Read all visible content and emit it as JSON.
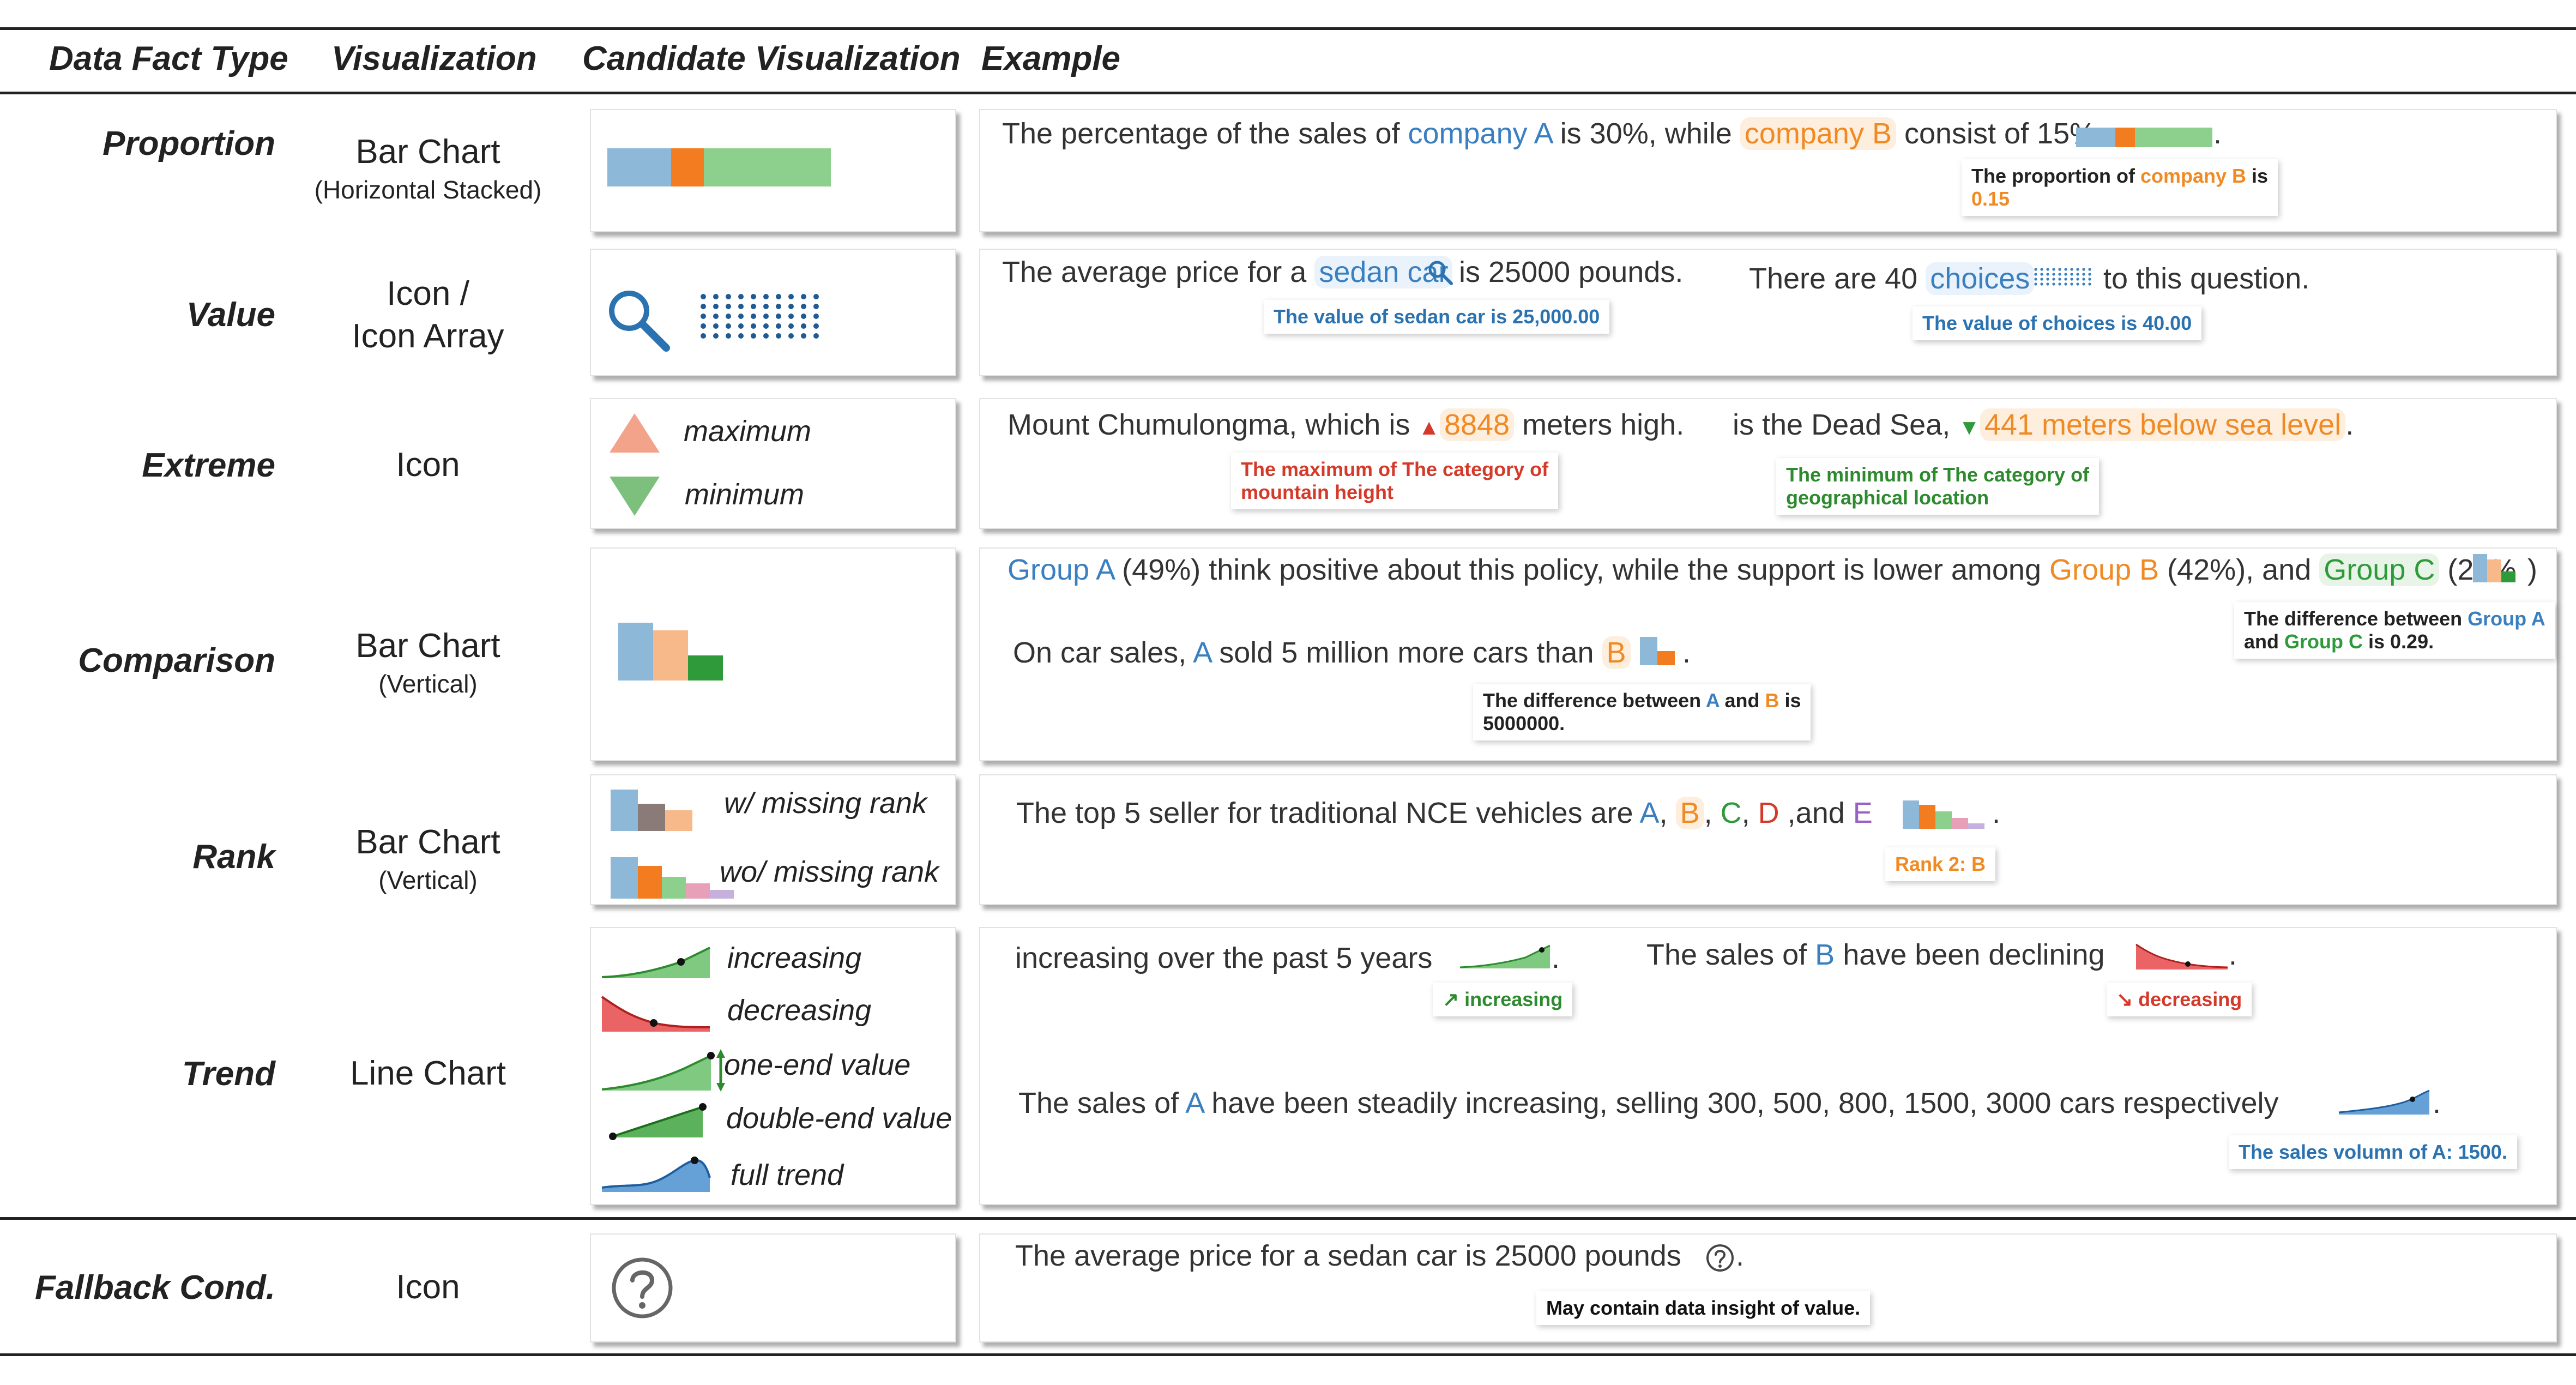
{
  "header": {
    "col_type": "Data Fact Type",
    "col_vis": "Visualization",
    "col_candidate": "Candidate Visualization",
    "col_example": "Example"
  },
  "rows": {
    "proportion": {
      "type": "Proportion",
      "vis": "Bar Chart",
      "vis_sub": "(Horizontal Stacked)",
      "ex": {
        "t1": "The percentage of the sales of ",
        "a": "company A",
        "t2": " is 30%, while ",
        "b": "company B",
        "t3": " consist of 15%",
        "t4": ".",
        "tip1": "The proportion of ",
        "tip_b": "company B",
        "tip2": " is",
        "tip3": "0.15"
      }
    },
    "value": {
      "type": "Value",
      "vis": "Icon /",
      "vis2": "Icon Array",
      "ex1": {
        "t1": "The average price for a ",
        "a": "sedan car",
        "t2": " is 25000 pounds.",
        "tip": "The value of sedan car is 25,000.00"
      },
      "ex2": {
        "t1": "There are 40 ",
        "a": "choices",
        "t2": " to this question.",
        "tip": "The value of choices is 40.00"
      }
    },
    "extreme": {
      "type": "Extreme",
      "vis": "Icon",
      "max_label": "maximum",
      "min_label": "minimum",
      "ex1": {
        "t1": "Mount Chumulongma, which is ",
        "a": "8848",
        "t2": " meters high.",
        "tip1": "The maximum of The category of",
        "tip2": "mountain height"
      },
      "ex2": {
        "t1": "is the Dead Sea, ",
        "a": "441 meters below sea level",
        "t2": ".",
        "tip1": "The minimum of The category of",
        "tip2": "geographical location"
      }
    },
    "comparison": {
      "type": "Comparison",
      "vis": "Bar Chart",
      "vis_sub": "(Vertical)",
      "ex1": {
        "a": "Group A",
        "t1": " (49%) think positive about this policy, while the support is lower among ",
        "b": "Group B",
        "t2": " (42%), and ",
        "c": "Group C",
        "t3": " (20%",
        "t4": ")",
        "tip1": "The difference between ",
        "tip_a": "Group A",
        "tip2": "and ",
        "tip_c": "Group C",
        "tip3": " is 0.29."
      },
      "ex2": {
        "t1": "On car sales, ",
        "a": "A",
        "t2": " sold 5 million more cars than ",
        "b": "B",
        "t3": ".",
        "tip1": "The difference between ",
        "tip_a": "A",
        "tip2": " and ",
        "tip_b": "B",
        "tip3": " is",
        "tip4": "5000000."
      }
    },
    "rank": {
      "type": "Rank",
      "vis": "Bar Chart",
      "vis_sub": "(Vertical)",
      "w_label": "w/ missing rank",
      "wo_label": "wo/ missing rank",
      "ex": {
        "t1": "The top 5 seller for traditional NCE vehicles are ",
        "a": "A",
        "s1": ", ",
        "b": "B",
        "s2": ", ",
        "c": "C",
        "s3": ", ",
        "d": "D",
        "s4": " ,and ",
        "e": "E",
        "t2": ".",
        "tip": "Rank 2: B"
      }
    },
    "trend": {
      "type": "Trend",
      "vis": "Line Chart",
      "labels": [
        "increasing",
        "decreasing",
        "one-end value",
        "double-end value",
        "full trend"
      ],
      "ex1": {
        "t1": "increasing over the past 5 years",
        "t2": " .",
        "tip": "↗ increasing"
      },
      "ex2": {
        "t1": "The sales of ",
        "a": "B",
        "t2": " have been declining",
        "t3": " .",
        "tip": "↘ decreasing"
      },
      "ex3": {
        "t1": "The sales of ",
        "a": "A",
        "t2": " have been steadily increasing, selling 300, 500, 800, 1500, 3000 cars respectively",
        "t3": " .",
        "tip": "The sales volumn of A: 1500."
      }
    },
    "fallback": {
      "type": "Fallback Cond.",
      "vis": "Icon",
      "ex": {
        "t1": "The average price for a sedan car is 25000 pounds",
        "t2": ".",
        "tip": "May contain data insight of value."
      }
    }
  },
  "colors": {
    "blue": "#8db8d8",
    "orange": "#f47c20",
    "green": "#8dcf8d",
    "dgreen": "#2e9a3a",
    "red": "#e8494a",
    "gray": "#8a7a78",
    "pink": "#e8a0b8",
    "lavender": "#c6b0de",
    "salmon": "#f2a38a",
    "midgreen": "#7dc07d"
  }
}
